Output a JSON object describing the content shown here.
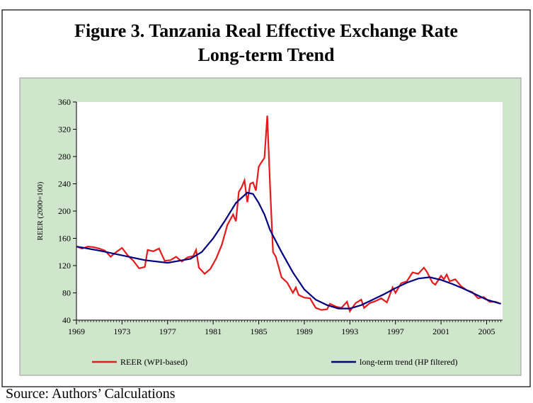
{
  "chart_data": {
    "type": "line",
    "title": "Figure 3. Tanzania Real Effective Exchange Rate",
    "subtitle": "Long-term Trend",
    "y_label": "REER (2000=100)",
    "source": "Source: Authors’ Calculations",
    "xlim": [
      1969,
      2006.4
    ],
    "xticks": [
      1969,
      1973,
      1977,
      1981,
      1985,
      1989,
      1993,
      1997,
      2001,
      2005
    ],
    "ylim": [
      40,
      360
    ],
    "yticks": [
      40,
      80,
      120,
      160,
      200,
      240,
      280,
      320,
      360
    ],
    "series": [
      {
        "name": "REER (WPI-based)",
        "color": "#e41a1c",
        "x": [
          1969,
          1969.5,
          1970,
          1970.5,
          1971,
          1971.5,
          1972,
          1972.5,
          1973,
          1973.5,
          1974,
          1974.5,
          1975,
          1975.25,
          1975.75,
          1976.25,
          1976.75,
          1977.25,
          1977.75,
          1978.25,
          1978.75,
          1979.25,
          1979.5,
          1979.75,
          1980.25,
          1980.75,
          1981.25,
          1981.75,
          1982.25,
          1982.75,
          1983,
          1983.25,
          1983.5,
          1983.75,
          1984,
          1984.25,
          1984.5,
          1984.75,
          1985,
          1985.25,
          1985.5,
          1985.75,
          1986,
          1986.25,
          1986.5,
          1987,
          1987.5,
          1988,
          1988.25,
          1988.5,
          1989,
          1989.5,
          1990,
          1990.5,
          1991,
          1991.25,
          1991.75,
          1992.25,
          1992.75,
          1993,
          1993.5,
          1994,
          1994.25,
          1994.75,
          1995.25,
          1995.75,
          1996.25,
          1996.75,
          1997,
          1997.5,
          1998,
          1998.5,
          1999,
          1999.5,
          1999.75,
          2000.25,
          2000.5,
          2001,
          2001.25,
          2001.5,
          2001.75,
          2002.25,
          2002.75,
          2003.25,
          2003.75,
          2004.25,
          2004.75,
          2005.25,
          2005.75,
          2006.25
        ],
        "values": [
          148,
          145,
          148,
          147,
          145,
          142,
          133,
          140,
          146,
          135,
          127,
          116,
          118,
          143,
          141,
          145,
          127,
          128,
          133,
          126,
          132,
          134,
          143,
          117,
          108,
          115,
          130,
          150,
          180,
          195,
          185,
          228,
          235,
          245,
          213,
          240,
          242,
          230,
          265,
          272,
          278,
          340,
          235,
          140,
          133,
          103,
          95,
          80,
          88,
          77,
          73,
          72,
          58,
          55,
          56,
          64,
          60,
          58,
          67,
          53,
          65,
          70,
          58,
          65,
          68,
          72,
          66,
          88,
          80,
          94,
          97,
          110,
          108,
          117,
          111,
          95,
          92,
          105,
          100,
          107,
          97,
          100,
          90,
          84,
          81,
          72,
          74,
          67,
          67,
          64
        ]
      },
      {
        "name": "long-term trend (HP filtered)",
        "color": "#000080",
        "x": [
          1969,
          1971,
          1973,
          1975,
          1977,
          1979,
          1980,
          1981,
          1982,
          1983,
          1984,
          1984.5,
          1985,
          1985.5,
          1986,
          1987,
          1988,
          1989,
          1990,
          1991,
          1992,
          1993,
          1994,
          1995,
          1996,
          1997,
          1998,
          1999,
          2000,
          2001,
          2002,
          2003,
          2004,
          2005,
          2006.25
        ],
        "values": [
          148,
          142,
          135,
          128,
          124,
          130,
          140,
          160,
          185,
          212,
          227,
          225,
          212,
          195,
          172,
          140,
          110,
          85,
          70,
          62,
          57,
          57,
          62,
          70,
          78,
          87,
          95,
          101,
          103,
          99,
          93,
          86,
          78,
          70,
          64
        ]
      }
    ]
  }
}
